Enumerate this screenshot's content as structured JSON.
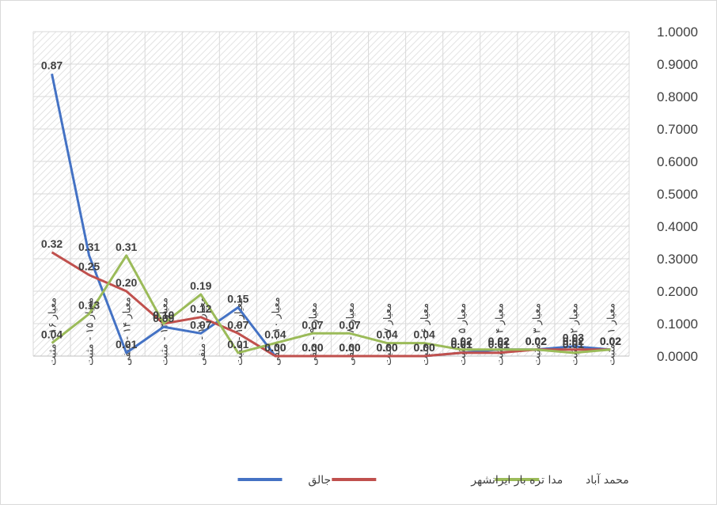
{
  "chart_data": {
    "type": "line",
    "categories": [
      "معیار ۱۶ - مثبت",
      "معیار ۱۵ - مثبت",
      "معیار ۱۴ - منفی",
      "معیار ۱۳ - مثبت",
      "معیار ۱۲ - منفی",
      "معیار ۱۱ - مثبت",
      "معیار ۱۰ - منفی",
      "معیار ۹ - منفی",
      "معیار ۸ - منفی",
      "معیار ۷ - مثبت",
      "معیار ۶ - مثبت",
      "معیار ۵ - مثبت",
      "معیار ۴ - مثبت",
      "معیار ۳ - مثبت",
      "معیار ۲ - مثبت",
      "معیار ۱ - مثبت"
    ],
    "series": [
      {
        "name": "جالق",
        "color": "#4472c4",
        "values": [
          0.87,
          0.31,
          0.01,
          0.09,
          0.07,
          0.15,
          0,
          0,
          0,
          0,
          0,
          0.01,
          0.02,
          0.02,
          0.03,
          0.02
        ],
        "value_labels": [
          "0.87",
          "0.31",
          "0.01",
          "0.09",
          "0.07",
          "0.15",
          "0.00",
          "0.00",
          "0.00",
          "0.00",
          "0.00",
          "0.01",
          "0.02",
          "0.02",
          "0.03",
          "0.02"
        ]
      },
      {
        "name": "مدا  تره بار ایرانشهر",
        "color": "#c0504d",
        "values": [
          0.32,
          0.25,
          0.2,
          0.1,
          0.12,
          0.07,
          0,
          0,
          0,
          0,
          0,
          0.01,
          0.01,
          0.02,
          0.02,
          0.02
        ],
        "value_labels": [
          "0.32",
          "0.25",
          "0.20",
          "0.10",
          "0.12",
          "0.07",
          "0.00",
          "0.00",
          "0.00",
          "0.00",
          "0.00",
          "0.01",
          "0.01",
          "0.02",
          "0.02",
          "0.02"
        ]
      },
      {
        "name": "محمد آباد",
        "color": "#9bbb59",
        "values": [
          0.04,
          0.13,
          0.31,
          0.1,
          0.19,
          0.01,
          0.04,
          0.07,
          0.07,
          0.04,
          0.04,
          0.02,
          0.02,
          0.02,
          0.01,
          0.02
        ],
        "value_labels": [
          "0.04",
          "0.13",
          "0.31",
          "0.10",
          "0.19",
          "0.01",
          "0.04",
          "0.07",
          "0.07",
          "0.04",
          "0.04",
          "0.02",
          "0.02",
          "0.02",
          "0.01",
          "0.02"
        ]
      }
    ],
    "ylim": [
      0,
      1
    ],
    "yticks": [
      {
        "value": 0,
        "label": "0.0000"
      },
      {
        "value": 0.1,
        "label": "0.1000"
      },
      {
        "value": 0.2,
        "label": "0.2000"
      },
      {
        "value": 0.3,
        "label": "0.3000"
      },
      {
        "value": 0.4,
        "label": "0.4000"
      },
      {
        "value": 0.5,
        "label": "0.5000"
      },
      {
        "value": 0.6,
        "label": "0.6000"
      },
      {
        "value": 0.7,
        "label": "0.7000"
      },
      {
        "value": 0.8,
        "label": "0.8000"
      },
      {
        "value": 0.9,
        "label": "0.9000"
      },
      {
        "value": 1,
        "label": "1.0000"
      }
    ],
    "grid": true,
    "legend": "bottom"
  }
}
